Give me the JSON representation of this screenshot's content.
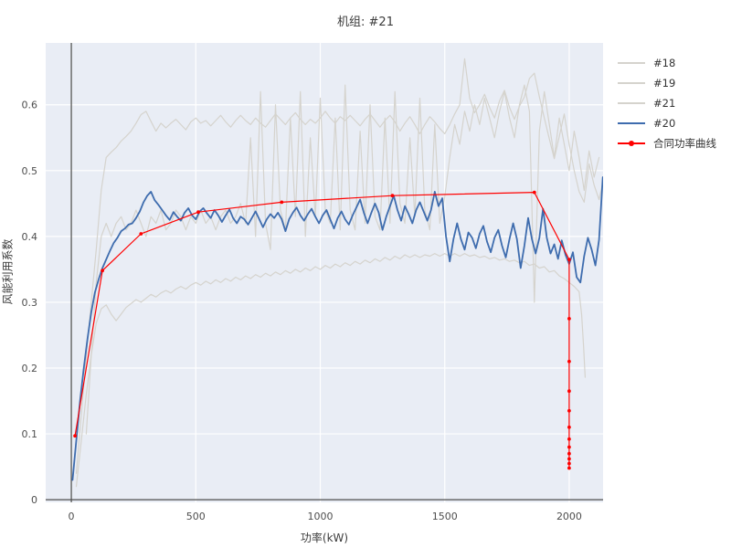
{
  "chart_data": {
    "type": "line",
    "title": "机组: #21",
    "xlabel": "功率(kW)",
    "ylabel": "风能利用系数",
    "xlim": [
      -103,
      2136
    ],
    "ylim": [
      -0.004,
      0.694
    ],
    "grid": true,
    "zero_lines": true,
    "legend_position": "outside-right-top",
    "xticks": [
      {
        "v": 0,
        "label": "0"
      },
      {
        "v": 500,
        "label": "500"
      },
      {
        "v": 1000,
        "label": "1000"
      },
      {
        "v": 1500,
        "label": "1500"
      },
      {
        "v": 2000,
        "label": "2000"
      }
    ],
    "yticks": [
      {
        "v": 0,
        "label": "0"
      },
      {
        "v": 0.1,
        "label": "0.1"
      },
      {
        "v": 0.2,
        "label": "0.2"
      },
      {
        "v": 0.3,
        "label": "0.3"
      },
      {
        "v": 0.4,
        "label": "0.4"
      },
      {
        "v": 0.5,
        "label": "0.5"
      },
      {
        "v": 0.6,
        "label": "0.6"
      }
    ],
    "colors": {
      "plot_bg": "#e9edf5",
      "grid": "#ffffff",
      "zero_line": "#4a4a4a",
      "gray_series": "#d5d3cd",
      "blue_series": "#3e6cae",
      "red_series": "#ff0000",
      "text": "#3b3b3b"
    },
    "series": [
      {
        "name": "#18",
        "color": "#d5d3cd",
        "width": 1.2,
        "marker": false,
        "x0": 20,
        "dx": 20,
        "y": [
          0.04,
          0.13,
          0.22,
          0.3,
          0.38,
          0.47,
          0.52,
          0.528,
          0.535,
          0.545,
          0.552,
          0.56,
          0.572,
          0.585,
          0.59,
          0.575,
          0.56,
          0.572,
          0.565,
          0.572,
          0.578,
          0.57,
          0.562,
          0.574,
          0.58,
          0.572,
          0.576,
          0.568,
          0.576,
          0.584,
          0.574,
          0.566,
          0.576,
          0.584,
          0.576,
          0.57,
          0.58,
          0.572,
          0.566,
          0.576,
          0.586,
          0.578,
          0.57,
          0.58,
          0.588,
          0.578,
          0.57,
          0.578,
          0.572,
          0.58,
          0.59,
          0.58,
          0.572,
          0.582,
          0.576,
          0.584,
          0.576,
          0.568,
          0.578,
          0.586,
          0.576,
          0.566,
          0.576,
          0.584,
          0.574,
          0.56,
          0.572,
          0.582,
          0.57,
          0.556,
          0.57,
          0.582,
          0.574,
          0.564,
          0.556,
          0.57,
          0.586,
          0.6,
          0.67,
          0.61,
          0.588,
          0.6,
          0.616,
          0.596,
          0.58,
          0.606,
          0.622,
          0.596,
          0.578,
          0.598,
          0.612,
          0.64,
          0.648,
          0.612,
          0.58,
          0.548,
          0.518,
          0.552,
          0.586,
          0.54,
          0.5,
          0.468,
          0.452,
          0.51,
          0.478,
          0.456,
          0.49
        ]
      },
      {
        "name": "#19",
        "color": "#d5d3cd",
        "width": 1.2,
        "marker": false,
        "x0": 20,
        "dx": 20,
        "y": [
          0.02,
          0.09,
          0.16,
          0.22,
          0.268,
          0.29,
          0.296,
          0.282,
          0.272,
          0.282,
          0.292,
          0.298,
          0.304,
          0.3,
          0.306,
          0.312,
          0.308,
          0.314,
          0.318,
          0.314,
          0.32,
          0.324,
          0.32,
          0.326,
          0.33,
          0.326,
          0.332,
          0.328,
          0.334,
          0.33,
          0.336,
          0.332,
          0.338,
          0.334,
          0.34,
          0.336,
          0.342,
          0.338,
          0.344,
          0.34,
          0.346,
          0.342,
          0.348,
          0.344,
          0.35,
          0.346,
          0.352,
          0.348,
          0.354,
          0.35,
          0.356,
          0.352,
          0.358,
          0.354,
          0.36,
          0.356,
          0.362,
          0.358,
          0.364,
          0.36,
          0.366,
          0.362,
          0.368,
          0.364,
          0.37,
          0.366,
          0.372,
          0.368,
          0.372,
          0.368,
          0.372,
          0.37,
          0.374,
          0.37,
          0.374,
          0.37,
          0.374,
          0.37,
          0.374,
          0.37,
          0.372,
          0.368,
          0.37,
          0.366,
          0.368,
          0.364,
          0.366,
          0.362,
          0.364,
          0.36,
          0.362,
          0.356,
          0.358,
          0.352,
          0.354,
          0.346,
          0.348,
          0.34,
          0.336,
          0.33,
          0.324,
          0.316
        ],
        "points": [
          [
            2050,
            0.28
          ],
          [
            2058,
            0.232
          ],
          [
            2064,
            0.186
          ]
        ]
      },
      {
        "name": "#21",
        "color": "#d5d3cd",
        "width": 1.2,
        "marker": false,
        "x0": 60,
        "dx": 20,
        "y": [
          0.1,
          0.22,
          0.33,
          0.4,
          0.42,
          0.4,
          0.42,
          0.43,
          0.41,
          0.42,
          0.44,
          0.42,
          0.4,
          0.43,
          0.42,
          0.44,
          0.41,
          0.42,
          0.44,
          0.43,
          0.41,
          0.43,
          0.42,
          0.44,
          0.42,
          0.43,
          0.41,
          0.43,
          0.44,
          0.42,
          0.43,
          0.45,
          0.42,
          0.55,
          0.4,
          0.62,
          0.42,
          0.38,
          0.6,
          0.44,
          0.41,
          0.58,
          0.43,
          0.62,
          0.4,
          0.55,
          0.43,
          0.61,
          0.44,
          0.42,
          0.58,
          0.41,
          0.63,
          0.44,
          0.41,
          0.56,
          0.42,
          0.6,
          0.43,
          0.41,
          0.58,
          0.42,
          0.62,
          0.45,
          0.42,
          0.55,
          0.43,
          0.61,
          0.44,
          0.41,
          0.57,
          0.42,
          0.46,
          0.52,
          0.57,
          0.54,
          0.59,
          0.56,
          0.6,
          0.57,
          0.61,
          0.58,
          0.55,
          0.59,
          0.62,
          0.58,
          0.55,
          0.6,
          0.63,
          0.59,
          0.3,
          0.56,
          0.62,
          0.57,
          0.52,
          0.58,
          0.54,
          0.5,
          0.56,
          0.52,
          0.47,
          0.53,
          0.49,
          0.52
        ]
      },
      {
        "name": "#20",
        "color": "#3e6cae",
        "width": 1.8,
        "marker": false,
        "x0": 5,
        "dx": 15,
        "y": [
          0.03,
          0.09,
          0.15,
          0.2,
          0.245,
          0.285,
          0.315,
          0.335,
          0.352,
          0.365,
          0.378,
          0.39,
          0.398,
          0.408,
          0.412,
          0.418,
          0.42,
          0.428,
          0.438,
          0.452,
          0.462,
          0.468,
          0.455,
          0.448,
          0.44,
          0.432,
          0.425,
          0.437,
          0.43,
          0.424,
          0.436,
          0.443,
          0.432,
          0.426,
          0.438,
          0.443,
          0.435,
          0.428,
          0.44,
          0.432,
          0.422,
          0.432,
          0.441,
          0.428,
          0.42,
          0.43,
          0.426,
          0.418,
          0.428,
          0.438,
          0.426,
          0.414,
          0.426,
          0.434,
          0.428,
          0.436,
          0.426,
          0.408,
          0.426,
          0.436,
          0.444,
          0.432,
          0.424,
          0.434,
          0.442,
          0.43,
          0.42,
          0.432,
          0.44,
          0.426,
          0.412,
          0.428,
          0.438,
          0.426,
          0.418,
          0.432,
          0.444,
          0.456,
          0.436,
          0.42,
          0.436,
          0.45,
          0.436,
          0.41,
          0.43,
          0.446,
          0.462,
          0.44,
          0.424,
          0.446,
          0.434,
          0.42,
          0.44,
          0.452,
          0.438,
          0.424,
          0.44,
          0.468,
          0.446,
          0.458,
          0.4,
          0.362,
          0.396,
          0.42,
          0.396,
          0.38,
          0.406,
          0.398,
          0.382,
          0.404,
          0.416,
          0.392,
          0.376,
          0.398,
          0.41,
          0.386,
          0.368,
          0.396,
          0.42,
          0.396,
          0.352,
          0.386,
          0.428,
          0.396,
          0.374,
          0.398,
          0.442,
          0.398,
          0.374,
          0.388,
          0.366,
          0.394,
          0.372,
          0.358,
          0.376,
          0.338,
          0.33,
          0.37,
          0.398,
          0.38,
          0.356,
          0.395,
          0.49
        ]
      },
      {
        "name": "合同功率曲线",
        "color": "#ff0000",
        "width": 1.2,
        "marker": true,
        "points": [
          [
            15,
            0.097
          ],
          [
            125,
            0.348
          ],
          [
            280,
            0.404
          ],
          [
            510,
            0.437
          ],
          [
            845,
            0.452
          ],
          [
            1290,
            0.462
          ],
          [
            1860,
            0.467
          ],
          [
            2000,
            0.365
          ],
          [
            2000,
            0.275
          ],
          [
            2000,
            0.21
          ],
          [
            2000,
            0.165
          ],
          [
            2000,
            0.135
          ],
          [
            2000,
            0.11
          ],
          [
            2000,
            0.092
          ],
          [
            2000,
            0.08
          ],
          [
            2000,
            0.07
          ],
          [
            2000,
            0.062
          ],
          [
            2000,
            0.055
          ],
          [
            2000,
            0.048
          ]
        ]
      }
    ]
  }
}
